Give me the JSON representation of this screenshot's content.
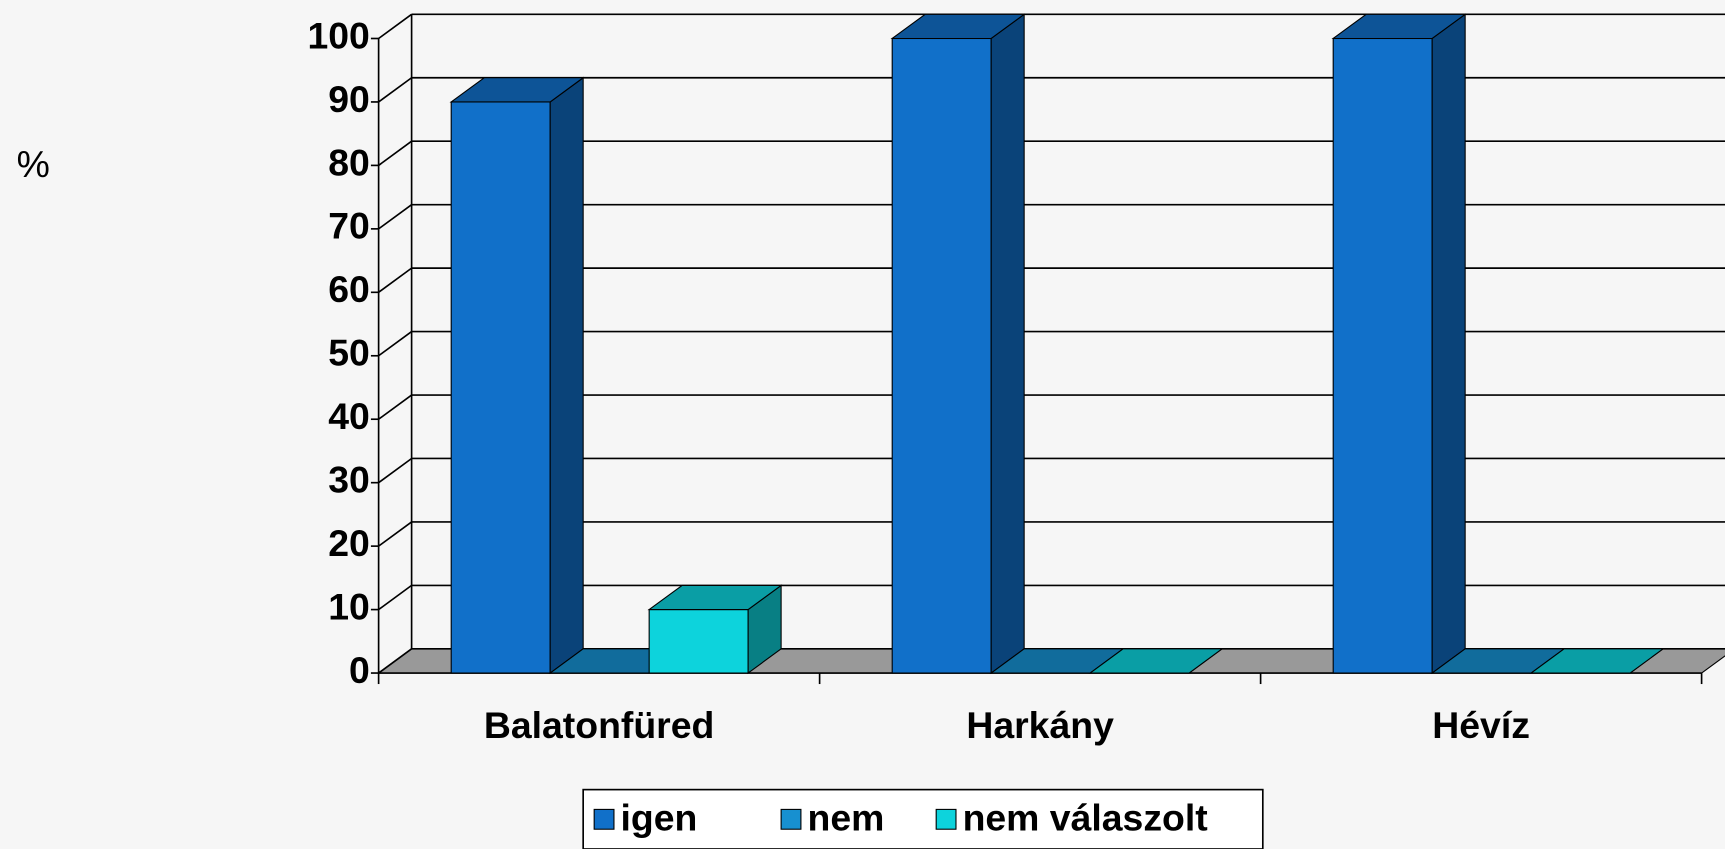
{
  "chart_data": {
    "type": "bar3d",
    "y_label": "%",
    "categories": [
      "Balatonfüred",
      "Harkány",
      "Hévíz"
    ],
    "series": [
      {
        "name": "igen",
        "color": "#1170c9",
        "values": [
          90,
          100,
          100
        ]
      },
      {
        "name": "nem",
        "color": "#1790d0",
        "values": [
          0,
          0,
          0
        ]
      },
      {
        "name": "nem válaszolt",
        "color": "#0dd3dc",
        "values": [
          10,
          0,
          0
        ]
      }
    ],
    "ylim": [
      0,
      100
    ],
    "yticks": [
      0,
      10,
      20,
      30,
      40,
      50,
      60,
      70,
      80,
      90,
      100
    ],
    "grid": true
  }
}
